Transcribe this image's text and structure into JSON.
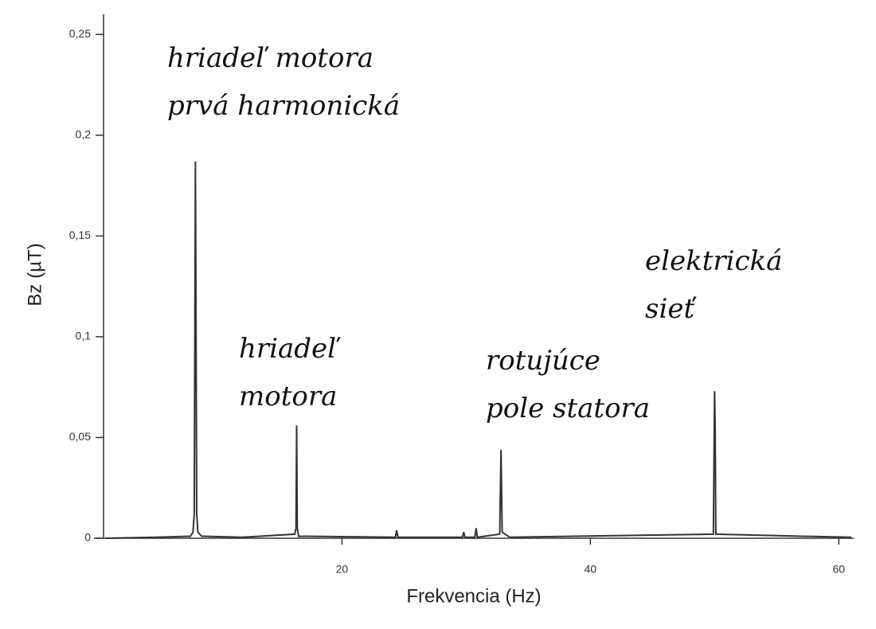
{
  "chart_data": {
    "type": "line",
    "x_label": "Frekvencia (Hz)",
    "y_label": "Bz (µT)",
    "xlim": [
      0.8,
      61.2
    ],
    "ylim": [
      0,
      0.26
    ],
    "xticks": [
      20,
      40,
      60
    ],
    "yticks": [
      0,
      {
        "value": 0.05,
        "label": "0,05"
      },
      {
        "value": 0.1,
        "label": "0,1"
      },
      {
        "value": 0.15,
        "label": "0,15"
      },
      {
        "value": 0.2,
        "label": "0,2"
      },
      {
        "value": 0.25,
        "label": "0,25"
      }
    ],
    "series": [
      {
        "color": "#333333",
        "x": [
          1,
          5,
          7.8,
          8.0,
          8.1,
          8.2,
          8.3,
          8.4,
          8.7,
          12,
          16.2,
          16.3,
          16.35,
          16.4,
          16.5,
          24.3,
          24.4,
          24.5,
          29.7,
          29.8,
          29.9,
          30.7,
          30.8,
          30.9,
          32.7,
          32.8,
          32.9,
          33.5,
          49.9,
          50.0,
          50.05,
          50.1,
          57,
          61
        ],
        "values": [
          0,
          0.0005,
          0.001,
          0.003,
          0.012,
          0.187,
          0.012,
          0.003,
          0.001,
          0.0005,
          0.002,
          0.005,
          0.056,
          0.005,
          0.001,
          0.0005,
          0.004,
          0.0005,
          0.0005,
          0.003,
          0.0005,
          0.0005,
          0.005,
          0.0005,
          0.002,
          0.044,
          0.003,
          0.0005,
          0.002,
          0.073,
          0.052,
          0.002,
          0.001,
          0.0005
        ]
      }
    ],
    "annotations": [
      {
        "lines": [
          "hriadeľ motora",
          "prvá harmonická"
        ]
      },
      {
        "lines": [
          "hriadeľ",
          "motora"
        ]
      },
      {
        "lines": [
          "rotujúce",
          "pole statora"
        ]
      },
      {
        "lines": [
          "elektrická",
          "sieť"
        ]
      }
    ]
  }
}
